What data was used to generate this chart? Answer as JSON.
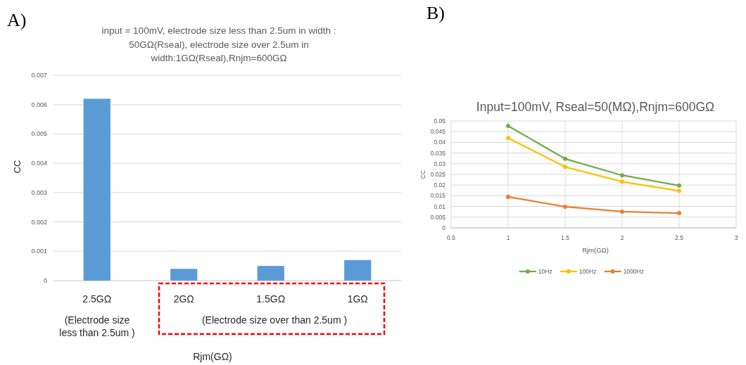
{
  "chart_data": [
    {
      "type": "bar",
      "title": "input = 100mV, electrode size less than 2.5um in width : 50GΩ(Rseal), electrode size over 2.5um in width:1GΩ(Rseal),Rnjm=600GΩ",
      "xlabel": "Rjm(GΩ)",
      "ylabel": "CC",
      "categories": [
        "2.5GΩ",
        "2GΩ",
        "1.5GΩ",
        "1GΩ"
      ],
      "values": [
        0.0062,
        0.0004,
        0.0005,
        0.0007
      ],
      "color": "#5b9bd5",
      "ylim": [
        0,
        0.007
      ],
      "yticks": [
        0,
        0.001,
        0.002,
        0.003,
        0.004,
        0.005,
        0.006,
        0.007
      ],
      "grid": "y",
      "annotations": [
        "A)",
        "(Electrode size less than 2.5um )",
        "(Electrode size over than 2.5um )"
      ]
    },
    {
      "type": "line",
      "title": "Input=100mV, Rseal=50(MΩ),Rnjm=600GΩ",
      "xlabel": "Rjm(GΩ)",
      "ylabel": "CC",
      "x": [
        1,
        1.5,
        2,
        2.5
      ],
      "series": [
        {
          "name": "10Hz",
          "color": "#70ad47",
          "values": [
            0.0477,
            0.0323,
            0.0246,
            0.0198
          ]
        },
        {
          "name": "100Hz",
          "color": "#ffc000",
          "values": [
            0.042,
            0.0285,
            0.0216,
            0.0173
          ]
        },
        {
          "name": "1000Hz",
          "color": "#ed7d31",
          "values": [
            0.0145,
            0.0099,
            0.0076,
            0.0069
          ]
        }
      ],
      "xlim": [
        0.5,
        3
      ],
      "xticks": [
        0.5,
        1,
        1.5,
        2,
        2.5,
        3
      ],
      "ylim": [
        0,
        0.05
      ],
      "yticks": [
        0,
        0.005,
        0.01,
        0.015,
        0.02,
        0.025,
        0.03,
        0.035,
        0.04,
        0.045,
        0.05
      ],
      "grid": true,
      "legend": "bottom",
      "marker": "circle",
      "annotations": [
        "B)"
      ]
    }
  ]
}
